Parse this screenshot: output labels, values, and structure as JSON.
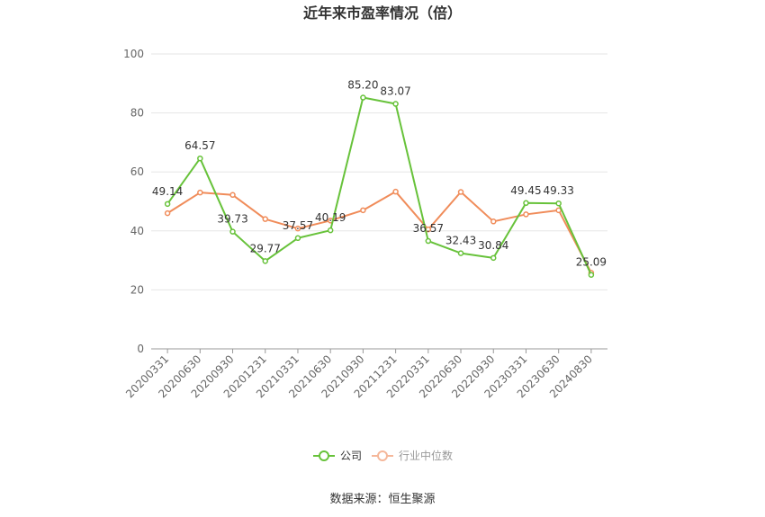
{
  "chart_data": {
    "type": "line",
    "title": "近年来市盈率情况（倍）",
    "categories": [
      "20200331",
      "20200630",
      "20200930",
      "20201231",
      "20210331",
      "20210630",
      "20210930",
      "20211231",
      "20220331",
      "20220630",
      "20220930",
      "20230331",
      "20230630",
      "20240830"
    ],
    "series": [
      {
        "name": "公司",
        "color": "#67c23a",
        "values": [
          49.14,
          64.57,
          39.73,
          29.77,
          37.57,
          40.19,
          85.2,
          83.07,
          36.57,
          32.43,
          30.84,
          49.45,
          49.33,
          25.09
        ],
        "labels": [
          "49.14",
          "64.57",
          "39.73",
          "29.77",
          "37.57",
          "40.19",
          "85.20",
          "83.07",
          "36.57",
          "32.43",
          "30.84",
          "49.45",
          "49.33",
          "25.09"
        ]
      },
      {
        "name": "行业中位数",
        "color": "#f08c5a",
        "values": [
          46.0,
          53.0,
          52.2,
          44.0,
          40.8,
          43.5,
          47.0,
          53.3,
          40.5,
          53.2,
          43.2,
          45.6,
          47.0,
          25.8
        ]
      }
    ],
    "ylim": [
      0,
      100
    ],
    "yticks": [
      0,
      20,
      40,
      60,
      80,
      100
    ],
    "grid": true,
    "legend": "bottom-center"
  },
  "footer": {
    "source": "数据来源：恒生聚源"
  }
}
